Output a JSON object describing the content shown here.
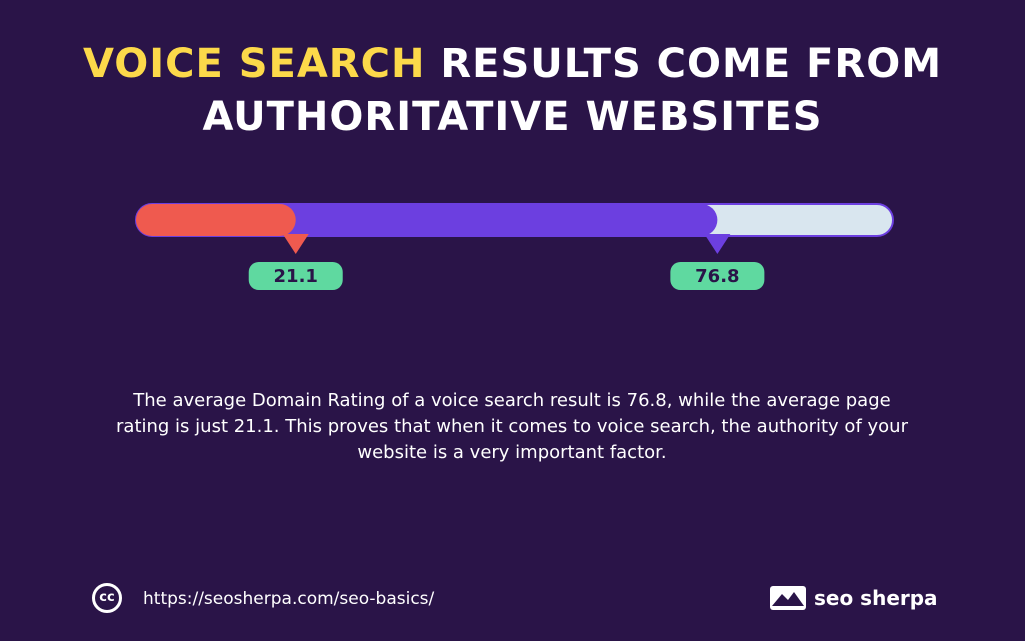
{
  "chart_data": {
    "type": "progress",
    "title_highlight": "VOICE SEARCH",
    "title_rest": "RESULTS COME FROM AUTHORITATIVE WEBSITES",
    "values": [
      21.1,
      76.8
    ],
    "colors": [
      "#ef5a4f",
      "#6c3fe0"
    ],
    "label_color": "#5fd9a0",
    "track_color": "#d9e6ef",
    "xlim": [
      0,
      100
    ],
    "description": "The average Domain Rating of a voice search result is 76.8, while the average page rating is just 21.1. This proves that when it comes to voice search, the authority of your website is a very important factor.",
    "source": "https://seosherpa.com/seo-basics/",
    "brand": "seo sherpa"
  }
}
